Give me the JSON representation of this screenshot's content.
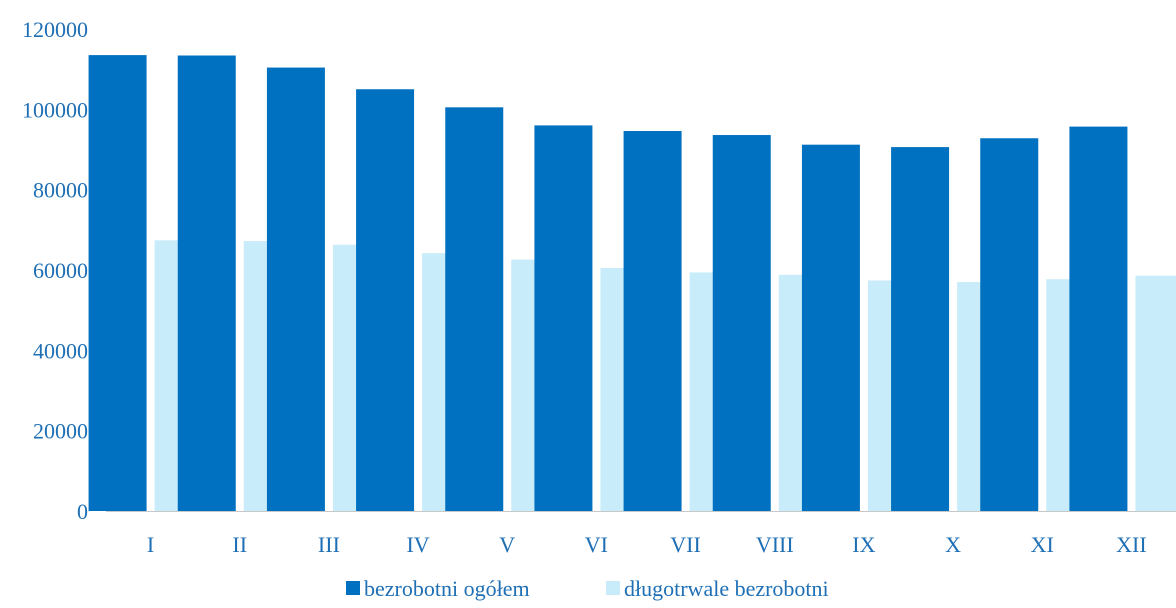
{
  "chart_data": {
    "type": "bar",
    "categories": [
      "I",
      "II",
      "III",
      "IV",
      "V",
      "VI",
      "VII",
      "VIII",
      "IX",
      "X",
      "XI",
      "XII"
    ],
    "series": [
      {
        "name": "bezrobotni ogółem",
        "color": "#0070c0",
        "values": [
          113500,
          113400,
          110400,
          105000,
          100500,
          96000,
          94600,
          93600,
          91200,
          90600,
          92800,
          95700
        ]
      },
      {
        "name": "długotrwale bezrobotni",
        "color": "#c9ecfa",
        "values": [
          67400,
          67200,
          66300,
          64200,
          62600,
          60500,
          59400,
          58800,
          57400,
          57000,
          57700,
          58600
        ]
      }
    ],
    "ylim": [
      0,
      120000
    ],
    "yticks": [
      0,
      20000,
      40000,
      60000,
      80000,
      100000,
      120000
    ],
    "title": "",
    "xlabel": "",
    "ylabel": "",
    "legend_position": "bottom-center",
    "grid": false
  }
}
